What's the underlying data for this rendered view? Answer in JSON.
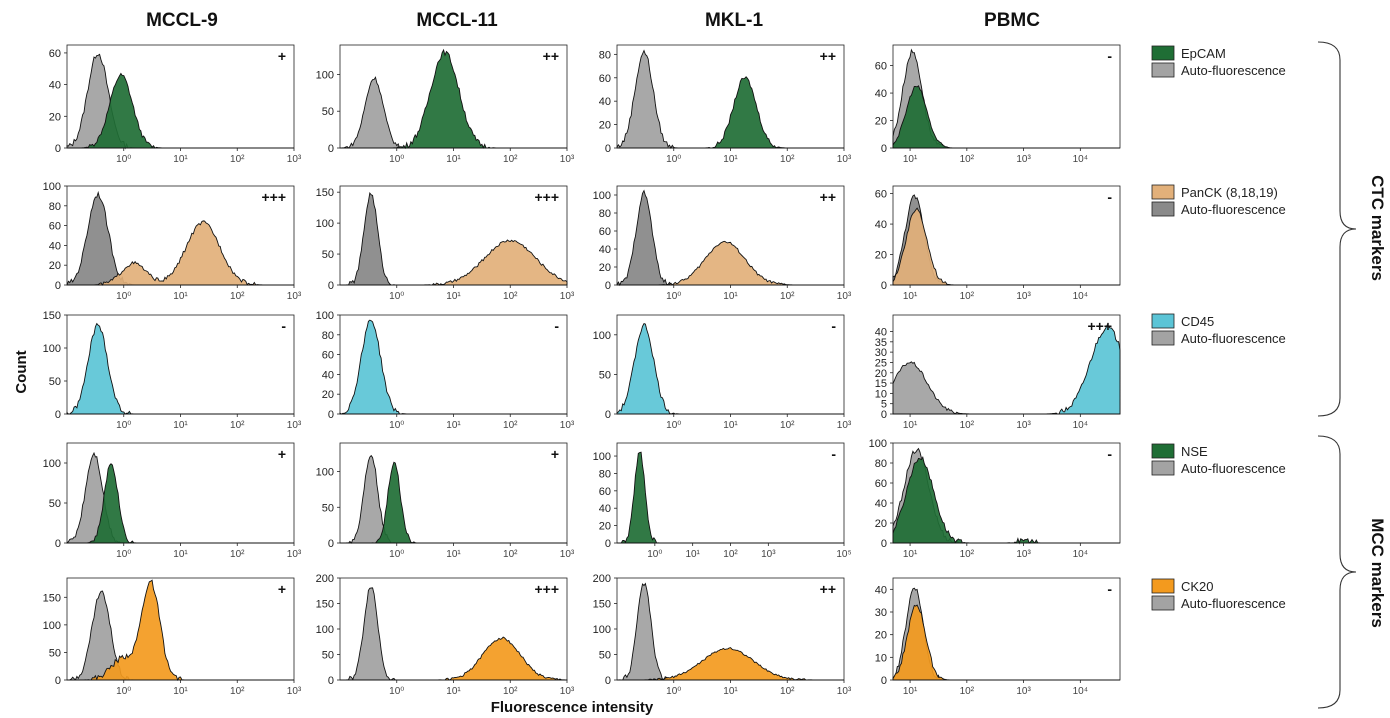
{
  "figure": {
    "columns": [
      "MCCL-9",
      "MCCL-11",
      "MKL-1",
      "PBMC"
    ],
    "ylabel": "Count",
    "xlabel": "Fluorescence intensity",
    "groups": [
      {
        "label": "CTC markers",
        "rows": [
          0,
          1,
          2
        ]
      },
      {
        "label": "MCC markers",
        "rows": [
          3,
          4
        ]
      }
    ],
    "legend": [
      {
        "marker": "EpCAM",
        "color": "#1f6e35",
        "control": "Auto-fluorescence",
        "control_color": "#a3a3a3"
      },
      {
        "marker": "PanCK (8,18,19)",
        "color": "#e2b07a",
        "control": "Auto-fluorescence",
        "control_color": "#8a8a8a"
      },
      {
        "marker": "CD45",
        "color": "#5bc4d6",
        "control": "Auto-fluorescence",
        "control_color": "#a3a3a3"
      },
      {
        "marker": "NSE",
        "color": "#1f6e35",
        "control": "Auto-fluorescence",
        "control_color": "#a3a3a3"
      },
      {
        "marker": "CK20",
        "color": "#f39a1e",
        "control": "Auto-fluorescence",
        "control_color": "#a3a3a3"
      }
    ]
  },
  "chart_data": [
    {
      "type": "area",
      "row": 0,
      "col": 0,
      "marker": "EpCAM",
      "score": "+",
      "log": true,
      "xlim": [
        0.1,
        1000
      ],
      "ylim": [
        0,
        65
      ],
      "yticks": [
        0,
        20,
        40,
        60
      ],
      "xticks": [
        1,
        10,
        100,
        1000
      ],
      "xtick_labels": [
        "10⁰",
        "10¹",
        "10²",
        "10³"
      ],
      "series": [
        {
          "name": "Auto-fluorescence",
          "peak_x": 0.35,
          "peak_y": 60,
          "width": 0.18
        },
        {
          "name": "EpCAM",
          "peak_x": 0.9,
          "peak_y": 46,
          "width": 0.2
        }
      ]
    },
    {
      "type": "area",
      "row": 0,
      "col": 1,
      "marker": "EpCAM",
      "score": "++",
      "log": true,
      "xlim": [
        0.1,
        1000
      ],
      "ylim": [
        0,
        140
      ],
      "yticks": [
        0,
        50,
        100
      ],
      "xticks": [
        1,
        10,
        100,
        1000
      ],
      "xtick_labels": [
        "10⁰",
        "10¹",
        "10²",
        "10³"
      ],
      "series": [
        {
          "name": "Auto-fluorescence",
          "peak_x": 0.4,
          "peak_y": 95,
          "width": 0.16
        },
        {
          "name": "EpCAM",
          "peak_x": 7,
          "peak_y": 130,
          "width": 0.25
        }
      ]
    },
    {
      "type": "area",
      "row": 0,
      "col": 2,
      "marker": "EpCAM",
      "score": "++",
      "log": true,
      "xlim": [
        0.1,
        1000
      ],
      "ylim": [
        0,
        88
      ],
      "yticks": [
        0,
        20,
        40,
        60,
        80
      ],
      "xticks": [
        1,
        10,
        100,
        1000
      ],
      "xtick_labels": [
        "10⁰",
        "10¹",
        "10²",
        "10³"
      ],
      "series": [
        {
          "name": "Auto-fluorescence",
          "peak_x": 0.3,
          "peak_y": 82,
          "width": 0.16
        },
        {
          "name": "EpCAM",
          "peak_x": 18,
          "peak_y": 60,
          "width": 0.2
        }
      ]
    },
    {
      "type": "area",
      "row": 0,
      "col": 3,
      "marker": "EpCAM",
      "score": "-",
      "log": true,
      "xlim": [
        5,
        50000
      ],
      "ylim": [
        0,
        75
      ],
      "yticks": [
        0,
        20,
        40,
        60
      ],
      "xticks": [
        10,
        100,
        1000,
        10000
      ],
      "xtick_labels": [
        "10¹",
        "10²",
        "10³",
        "10⁴"
      ],
      "series": [
        {
          "name": "Auto-fluorescence",
          "peak_x": 11,
          "peak_y": 70,
          "width": 0.17
        },
        {
          "name": "EpCAM",
          "peak_x": 13,
          "peak_y": 45,
          "width": 0.18
        }
      ]
    },
    {
      "type": "area",
      "row": 1,
      "col": 0,
      "marker": "PanCK (8,18,19)",
      "score": "+++",
      "log": true,
      "xlim": [
        0.1,
        1000
      ],
      "ylim": [
        0,
        100
      ],
      "yticks": [
        0,
        20,
        40,
        60,
        80,
        100
      ],
      "xticks": [
        1,
        10,
        100,
        1000
      ],
      "xtick_labels": [
        "10⁰",
        "10¹",
        "10²",
        "10³"
      ],
      "series": [
        {
          "name": "Auto-fluorescence",
          "peak_x": 0.35,
          "peak_y": 92,
          "width": 0.18
        },
        {
          "name": "PanCK (8,18,19)",
          "peak_x": 25,
          "peak_y": 63,
          "width": 0.3,
          "shoulder_x": 1.5,
          "shoulder_y": 22
        }
      ]
    },
    {
      "type": "area",
      "row": 1,
      "col": 1,
      "marker": "PanCK (8,18,19)",
      "score": "+++",
      "log": true,
      "xlim": [
        0.1,
        1000
      ],
      "ylim": [
        0,
        160
      ],
      "yticks": [
        0,
        50,
        100,
        150
      ],
      "xticks": [
        1,
        10,
        100,
        1000
      ],
      "xtick_labels": [
        "10⁰",
        "10¹",
        "10²",
        "10³"
      ],
      "series": [
        {
          "name": "Auto-fluorescence",
          "peak_x": 0.35,
          "peak_y": 148,
          "width": 0.12
        },
        {
          "name": "PanCK (8,18,19)",
          "peak_x": 100,
          "peak_y": 72,
          "width": 0.45
        }
      ]
    },
    {
      "type": "area",
      "row": 1,
      "col": 2,
      "marker": "PanCK (8,18,19)",
      "score": "++",
      "log": true,
      "xlim": [
        0.1,
        1000
      ],
      "ylim": [
        0,
        110
      ],
      "yticks": [
        0,
        20,
        40,
        60,
        80,
        100
      ],
      "xticks": [
        1,
        10,
        100,
        1000
      ],
      "xtick_labels": [
        "10⁰",
        "10¹",
        "10²",
        "10³"
      ],
      "series": [
        {
          "name": "Auto-fluorescence",
          "peak_x": 0.3,
          "peak_y": 102,
          "width": 0.14
        },
        {
          "name": "PanCK (8,18,19)",
          "peak_x": 8,
          "peak_y": 48,
          "width": 0.35
        }
      ]
    },
    {
      "type": "area",
      "row": 1,
      "col": 3,
      "marker": "PanCK (8,18,19)",
      "score": "-",
      "log": true,
      "xlim": [
        5,
        50000
      ],
      "ylim": [
        0,
        65
      ],
      "yticks": [
        0,
        20,
        40,
        60
      ],
      "xticks": [
        10,
        100,
        1000,
        10000
      ],
      "xtick_labels": [
        "10¹",
        "10²",
        "10³",
        "10⁴"
      ],
      "series": [
        {
          "name": "Auto-fluorescence",
          "peak_x": 12,
          "peak_y": 58,
          "width": 0.17
        },
        {
          "name": "PanCK (8,18,19)",
          "peak_x": 13,
          "peak_y": 50,
          "width": 0.18
        }
      ]
    },
    {
      "type": "area",
      "row": 2,
      "col": 0,
      "marker": "CD45",
      "score": "-",
      "log": true,
      "xlim": [
        0.1,
        1000
      ],
      "ylim": [
        0,
        150
      ],
      "yticks": [
        0,
        50,
        100,
        150
      ],
      "xticks": [
        1,
        10,
        100,
        1000
      ],
      "xtick_labels": [
        "10⁰",
        "10¹",
        "10²",
        "10³"
      ],
      "series": [
        {
          "name": "CD45",
          "peak_x": 0.35,
          "peak_y": 135,
          "width": 0.17
        }
      ]
    },
    {
      "type": "area",
      "row": 2,
      "col": 1,
      "marker": "CD45",
      "score": "-",
      "log": true,
      "xlim": [
        0.1,
        1000
      ],
      "ylim": [
        0,
        100
      ],
      "yticks": [
        0,
        20,
        40,
        60,
        80,
        100
      ],
      "xticks": [
        1,
        10,
        100,
        1000
      ],
      "xtick_labels": [
        "10⁰",
        "10¹",
        "10²",
        "10³"
      ],
      "series": [
        {
          "name": "CD45",
          "peak_x": 0.35,
          "peak_y": 95,
          "width": 0.17
        }
      ]
    },
    {
      "type": "area",
      "row": 2,
      "col": 2,
      "marker": "CD45",
      "score": "-",
      "log": true,
      "xlim": [
        0.1,
        1000
      ],
      "ylim": [
        0,
        125
      ],
      "yticks": [
        0,
        50,
        100
      ],
      "xticks": [
        1,
        10,
        100,
        1000
      ],
      "xtick_labels": [
        "10⁰",
        "10¹",
        "10²",
        "10³"
      ],
      "series": [
        {
          "name": "CD45",
          "peak_x": 0.3,
          "peak_y": 112,
          "width": 0.17
        }
      ]
    },
    {
      "type": "area",
      "row": 2,
      "col": 3,
      "marker": "CD45",
      "score": "+++",
      "log": true,
      "xlim": [
        5,
        50000
      ],
      "ylim": [
        0,
        48
      ],
      "yticks": [
        0,
        5,
        10,
        15,
        20,
        25,
        30,
        35,
        40
      ],
      "xticks": [
        10,
        100,
        1000,
        10000
      ],
      "xtick_labels": [
        "10¹",
        "10²",
        "10³",
        "10⁴"
      ],
      "series": [
        {
          "name": "Auto-fluorescence",
          "peak_x": 10,
          "peak_y": 25,
          "width": 0.3
        },
        {
          "name": "CD45",
          "peak_x": 30000,
          "peak_y": 42,
          "width": 0.3
        }
      ]
    },
    {
      "type": "area",
      "row": 3,
      "col": 0,
      "marker": "NSE",
      "score": "+",
      "log": true,
      "xlim": [
        0.1,
        1000
      ],
      "ylim": [
        0,
        125
      ],
      "yticks": [
        0,
        50,
        100
      ],
      "xticks": [
        1,
        10,
        100,
        1000
      ],
      "xtick_labels": [
        "10⁰",
        "10¹",
        "10²",
        "10³"
      ],
      "series": [
        {
          "name": "Auto-fluorescence",
          "peak_x": 0.3,
          "peak_y": 112,
          "width": 0.15
        },
        {
          "name": "NSE",
          "peak_x": 0.6,
          "peak_y": 100,
          "width": 0.12
        }
      ]
    },
    {
      "type": "area",
      "row": 3,
      "col": 1,
      "marker": "NSE",
      "score": "+",
      "log": true,
      "xlim": [
        0.1,
        1000
      ],
      "ylim": [
        0,
        140
      ],
      "yticks": [
        0,
        50,
        100
      ],
      "xticks": [
        1,
        10,
        100,
        1000
      ],
      "xtick_labels": [
        "10⁰",
        "10¹",
        "10²",
        "10³"
      ],
      "series": [
        {
          "name": "Auto-fluorescence",
          "peak_x": 0.35,
          "peak_y": 125,
          "width": 0.12
        },
        {
          "name": "NSE",
          "peak_x": 0.9,
          "peak_y": 112,
          "width": 0.11
        }
      ]
    },
    {
      "type": "area",
      "row": 3,
      "col": 2,
      "marker": "NSE",
      "score": "-",
      "log": true,
      "xlim": [
        0.1,
        100000
      ],
      "ylim": [
        0,
        115
      ],
      "yticks": [
        0,
        20,
        40,
        60,
        80,
        100
      ],
      "xticks": [
        1,
        10,
        100,
        1000,
        100000
      ],
      "xtick_labels": [
        "10⁰",
        "10¹",
        "10²",
        "10³",
        "10⁵"
      ],
      "series": [
        {
          "name": "NSE",
          "peak_x": 0.4,
          "peak_y": 105,
          "width": 0.14
        }
      ]
    },
    {
      "type": "area",
      "row": 3,
      "col": 3,
      "marker": "NSE",
      "score": "-",
      "log": true,
      "xlim": [
        5,
        50000
      ],
      "ylim": [
        0,
        100
      ],
      "yticks": [
        0,
        20,
        40,
        60,
        80,
        100
      ],
      "xticks": [
        10,
        100,
        1000,
        10000
      ],
      "xtick_labels": [
        "10¹",
        "10²",
        "10³",
        "10⁴"
      ],
      "series": [
        {
          "name": "Auto-fluorescence",
          "peak_x": 13,
          "peak_y": 93,
          "width": 0.22
        },
        {
          "name": "NSE",
          "peak_x": 15,
          "peak_y": 85,
          "width": 0.24,
          "minor_x": 1000,
          "minor_y": 3
        }
      ]
    },
    {
      "type": "area",
      "row": 4,
      "col": 0,
      "marker": "CK20",
      "score": "+",
      "log": true,
      "xlim": [
        0.1,
        1000
      ],
      "ylim": [
        0,
        185
      ],
      "yticks": [
        0,
        50,
        100,
        150
      ],
      "xticks": [
        1,
        10,
        100,
        1000
      ],
      "xtick_labels": [
        "10⁰",
        "10¹",
        "10²",
        "10³"
      ],
      "series": [
        {
          "name": "Auto-fluorescence",
          "peak_x": 0.4,
          "peak_y": 160,
          "width": 0.16
        },
        {
          "name": "CK20",
          "peak_x": 3,
          "peak_y": 175,
          "width": 0.16,
          "shoulder_x": 1,
          "shoulder_y": 40
        }
      ]
    },
    {
      "type": "area",
      "row": 4,
      "col": 1,
      "marker": "CK20",
      "score": "+++",
      "log": true,
      "xlim": [
        0.1,
        1000
      ],
      "ylim": [
        0,
        200
      ],
      "yticks": [
        0,
        50,
        100,
        150,
        200
      ],
      "xticks": [
        1,
        10,
        100,
        1000
      ],
      "xtick_labels": [
        "10⁰",
        "10¹",
        "10²",
        "10³"
      ],
      "series": [
        {
          "name": "Auto-fluorescence",
          "peak_x": 0.35,
          "peak_y": 185,
          "width": 0.12
        },
        {
          "name": "CK20",
          "peak_x": 70,
          "peak_y": 82,
          "width": 0.33
        }
      ]
    },
    {
      "type": "area",
      "row": 4,
      "col": 2,
      "marker": "CK20",
      "score": "++",
      "log": true,
      "xlim": [
        0.1,
        1000
      ],
      "ylim": [
        0,
        200
      ],
      "yticks": [
        0,
        50,
        100,
        150,
        200
      ],
      "xticks": [
        1,
        10,
        100,
        1000
      ],
      "xtick_labels": [
        "10⁰",
        "10¹",
        "10²",
        "10³"
      ],
      "series": [
        {
          "name": "Auto-fluorescence",
          "peak_x": 0.3,
          "peak_y": 190,
          "width": 0.12
        },
        {
          "name": "CK20",
          "peak_x": 9,
          "peak_y": 62,
          "width": 0.45
        }
      ]
    },
    {
      "type": "area",
      "row": 4,
      "col": 3,
      "marker": "CK20",
      "score": "-",
      "log": true,
      "xlim": [
        5,
        50000
      ],
      "ylim": [
        0,
        45
      ],
      "yticks": [
        0,
        10,
        20,
        30,
        40
      ],
      "xticks": [
        10,
        100,
        1000,
        10000
      ],
      "xtick_labels": [
        "10¹",
        "10²",
        "10³",
        "10⁴"
      ],
      "series": [
        {
          "name": "Auto-fluorescence",
          "peak_x": 12,
          "peak_y": 41,
          "width": 0.15
        },
        {
          "name": "CK20",
          "peak_x": 13,
          "peak_y": 33,
          "width": 0.16
        }
      ]
    }
  ]
}
